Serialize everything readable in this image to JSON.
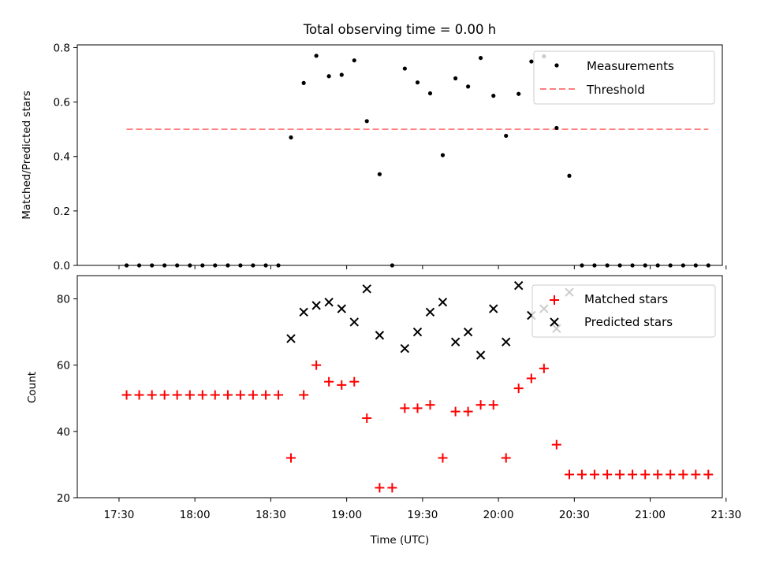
{
  "chart_data": [
    {
      "type": "scatter",
      "title": "Total observing time = 0.00 h",
      "ylabel": "Matched/Predicted stars",
      "xlabel": "",
      "xlim_hours_utc": [
        17.225,
        21.475
      ],
      "ylim": [
        0,
        0.81
      ],
      "yticks": [
        0.0,
        0.2,
        0.4,
        0.6,
        0.8
      ],
      "ytick_labels": [
        "0.0",
        "0.2",
        "0.4",
        "0.6",
        "0.8"
      ],
      "legend_position": "top-right",
      "series": [
        {
          "name": "Measurements",
          "marker": "dot",
          "color": "#000000",
          "x": [
            17.55,
            17.633,
            17.717,
            17.8,
            17.883,
            17.967,
            18.05,
            18.133,
            18.217,
            18.3,
            18.383,
            18.467,
            18.55,
            18.633,
            18.717,
            18.8,
            18.883,
            18.967,
            19.05,
            19.133,
            19.217,
            19.3,
            19.383,
            19.467,
            19.55,
            19.633,
            19.717,
            19.8,
            19.883,
            19.967,
            20.05,
            20.133,
            20.217,
            20.3,
            20.383,
            20.467,
            20.55,
            20.633,
            20.717,
            20.8,
            20.883,
            20.967,
            21.05,
            21.133,
            21.217,
            21.3,
            21.383
          ],
          "y": [
            0.0,
            0.0,
            0.0,
            0.0,
            0.0,
            0.0,
            0.0,
            0.0,
            0.0,
            0.0,
            0.0,
            0.0,
            0.0,
            0.47,
            0.67,
            0.77,
            0.695,
            0.7,
            0.753,
            0.53,
            0.335,
            0.0,
            0.723,
            0.672,
            0.632,
            0.405,
            0.687,
            0.657,
            0.762,
            0.623,
            0.476,
            0.63,
            0.749,
            0.768,
            0.505,
            0.329,
            0.0,
            0.0,
            0.0,
            0.0,
            0.0,
            0.0,
            0.0,
            0.0,
            0.0,
            0.0,
            0.0
          ]
        },
        {
          "name": "Threshold",
          "style": "dashed-line",
          "color": "#ff7f7f",
          "x": [
            17.55,
            21.383
          ],
          "y": [
            0.5,
            0.5
          ]
        }
      ]
    },
    {
      "type": "scatter",
      "title": "",
      "ylabel": "Count",
      "xlabel": "Time (UTC)",
      "xlim_hours_utc": [
        17.225,
        21.475
      ],
      "ylim": [
        20,
        87
      ],
      "yticks": [
        20,
        40,
        60,
        80
      ],
      "ytick_labels": [
        "20",
        "40",
        "60",
        "80"
      ],
      "xticks_hours_utc": [
        17.5,
        18.0,
        18.5,
        19.0,
        19.5,
        20.0,
        20.5,
        21.0,
        21.5
      ],
      "xtick_labels": [
        "17:30",
        "18:00",
        "18:30",
        "19:00",
        "19:30",
        "20:00",
        "20:30",
        "21:00",
        "21:30"
      ],
      "legend_position": "top-right",
      "series": [
        {
          "name": "Matched stars",
          "marker": "plus",
          "color": "#ff0000",
          "x": [
            17.55,
            17.633,
            17.717,
            17.8,
            17.883,
            17.967,
            18.05,
            18.133,
            18.217,
            18.3,
            18.383,
            18.467,
            18.55,
            18.633,
            18.717,
            18.8,
            18.883,
            18.967,
            19.05,
            19.133,
            19.217,
            19.3,
            19.383,
            19.467,
            19.55,
            19.633,
            19.717,
            19.8,
            19.883,
            19.967,
            20.05,
            20.133,
            20.217,
            20.3,
            20.383,
            20.467,
            20.55,
            20.633,
            20.717,
            20.8,
            20.883,
            20.967,
            21.05,
            21.133,
            21.217,
            21.3,
            21.383
          ],
          "y": [
            51,
            51,
            51,
            51,
            51,
            51,
            51,
            51,
            51,
            51,
            51,
            51,
            51,
            32,
            51,
            60,
            55,
            54,
            55,
            44,
            23,
            23,
            47,
            47,
            48,
            32,
            46,
            46,
            48,
            48,
            32,
            53,
            56,
            59,
            36,
            27,
            27,
            27,
            27,
            27,
            27,
            27,
            27,
            27,
            27,
            27,
            27
          ]
        },
        {
          "name": "Predicted stars",
          "marker": "x",
          "color": "#000000",
          "x": [
            18.633,
            18.717,
            18.8,
            18.883,
            18.967,
            19.05,
            19.133,
            19.217,
            19.383,
            19.467,
            19.55,
            19.633,
            19.717,
            19.8,
            19.883,
            19.967,
            20.05,
            20.133,
            20.217,
            20.3,
            20.383,
            20.467
          ],
          "y": [
            68,
            76,
            78,
            79,
            77,
            73,
            83,
            69,
            65,
            70,
            76,
            79,
            67,
            70,
            63,
            77,
            67,
            84,
            75,
            77,
            71,
            82
          ]
        }
      ]
    }
  ]
}
